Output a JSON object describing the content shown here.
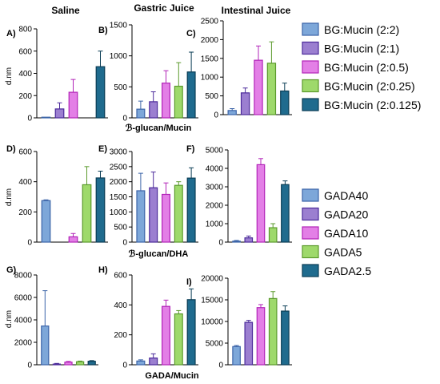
{
  "column_titles": [
    "Saline",
    "Gastric Juice",
    "Intestinal Juice"
  ],
  "row_xlabels": [
    "ℬ-glucan/Mucin",
    "ℬ-glucan/DHA",
    "GADA/Mucin"
  ],
  "legends": [
    {
      "entries": [
        "BG:Mucin (2:2)",
        "BG:Mucin (2:1)",
        "BG:Mucin (2:0.5)",
        "BG:Mucin (2:0.25)",
        "BG:Mucin (2:0.125)"
      ]
    },
    {
      "entries": [
        "GADA40",
        "GADA20",
        "GADA10",
        "GADA5",
        "GADA2.5"
      ]
    }
  ],
  "series_colors": [
    "#7da7d9",
    "#9b7fd0",
    "#e37fe6",
    "#9ed96b",
    "#1f6b8e"
  ],
  "series_borders": [
    "#3b64a8",
    "#4b2a9a",
    "#b224b8",
    "#5b9a2c",
    "#0a3d55"
  ],
  "chart_data": [
    {
      "type": "bar",
      "panel": "A)",
      "ylabel": "d.nm",
      "ylim": [
        0,
        800
      ],
      "yticks": [
        0,
        200,
        400,
        600,
        800
      ],
      "values": [
        0,
        80,
        230,
        null,
        460
      ],
      "errors": [
        0,
        55,
        115,
        null,
        140
      ]
    },
    {
      "type": "bar",
      "panel": "B)",
      "ylabel": "",
      "ylim": [
        0,
        1500
      ],
      "yticks": [
        0,
        500,
        1000,
        1500
      ],
      "values": [
        140,
        260,
        560,
        510,
        740
      ],
      "errors": [
        130,
        160,
        200,
        380,
        320
      ]
    },
    {
      "type": "bar",
      "panel": "C)",
      "ylabel": "",
      "ylim": [
        0,
        2500
      ],
      "yticks": [
        0,
        500,
        1000,
        1500,
        2000,
        2500
      ],
      "values": [
        110,
        580,
        1450,
        1370,
        630
      ],
      "errors": [
        50,
        130,
        380,
        570,
        210
      ]
    },
    {
      "type": "bar",
      "panel": "D)",
      "ylabel": "d.nm",
      "ylim": [
        0,
        600
      ],
      "yticks": [
        0,
        200,
        400,
        600
      ],
      "values": [
        275,
        null,
        35,
        380,
        425
      ],
      "errors": [
        5,
        null,
        22,
        120,
        45
      ]
    },
    {
      "type": "bar",
      "panel": "E)",
      "ylabel": "",
      "ylim": [
        0,
        3000
      ],
      "yticks": [
        0,
        500,
        1000,
        1500,
        2000,
        2500,
        3000
      ],
      "values": [
        1700,
        1800,
        1580,
        1880,
        2120
      ],
      "errors": [
        580,
        520,
        380,
        120,
        340
      ]
    },
    {
      "type": "bar",
      "panel": "F)",
      "ylabel": "",
      "ylim": [
        0,
        5000
      ],
      "yticks": [
        0,
        1000,
        2000,
        3000,
        4000,
        5000
      ],
      "values": [
        50,
        230,
        4200,
        780,
        3120
      ],
      "errors": [
        40,
        100,
        330,
        220,
        200
      ]
    },
    {
      "type": "bar",
      "panel": "G)",
      "ylabel": "d.nm",
      "ylim": [
        0,
        8000
      ],
      "yticks": [
        0,
        2000,
        4000,
        6000,
        8000
      ],
      "values": [
        3450,
        60,
        230,
        270,
        310
      ],
      "errors": [
        3150,
        60,
        70,
        60,
        60
      ]
    },
    {
      "type": "bar",
      "panel": "H)",
      "ylabel": "",
      "ylim": [
        0,
        600
      ],
      "yticks": [
        0,
        200,
        400,
        600
      ],
      "values": [
        25,
        45,
        390,
        340,
        435
      ],
      "errors": [
        8,
        28,
        42,
        22,
        72
      ]
    },
    {
      "type": "bar",
      "panel": "I)",
      "ylabel": "",
      "ylim": [
        0,
        20000
      ],
      "yticks": [
        0,
        5000,
        10000,
        15000,
        20000
      ],
      "values": [
        4200,
        9800,
        13200,
        15300,
        12400
      ],
      "errors": [
        250,
        450,
        700,
        1600,
        1200
      ]
    }
  ]
}
